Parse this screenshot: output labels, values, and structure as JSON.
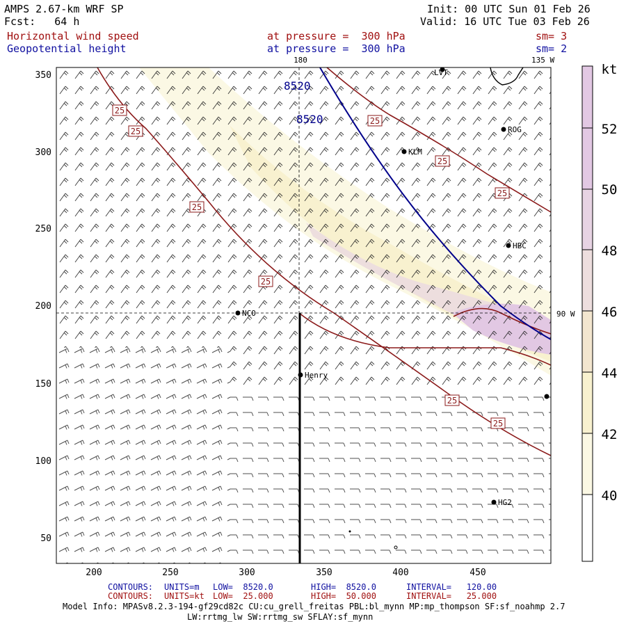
{
  "header": {
    "model": "AMPS 2.67-km WRF SP",
    "forecast": "Fcst:   64 h",
    "init": "Init: 00 UTC Sun 01 Feb 26",
    "valid": "Valid: 16 UTC Tue 03 Feb 26",
    "field1_name": "Horizontal wind speed",
    "field1_level": "at pressure =  300 hPa",
    "field1_smooth": "sm= 3",
    "field2_name": "Geopotential height",
    "field2_level": "at pressure =  300 hPa",
    "field2_smooth": "sm= 2"
  },
  "colors": {
    "wind_contour": "#8b1a1a",
    "height_contour": "#00008b",
    "shade_40": "#fbf8e4",
    "shade_42": "#f8f1cf",
    "shade_44": "#f3e6cf",
    "shade_46": "#eddede",
    "shade_48": "#e7d3e3",
    "shade_50": "#e2c8e3"
  },
  "map": {
    "x_ticks": [
      "200",
      "250",
      "300",
      "350",
      "400",
      "450"
    ],
    "y_ticks": [
      "350",
      "300",
      "250",
      "200",
      "150",
      "100",
      "50"
    ],
    "lon_labels": {
      "top_180": "180",
      "top_135w": "135 W",
      "right_90w": "90 W"
    },
    "wind_contour_label": "25",
    "height_contour_label": "8520",
    "stations": [
      {
        "name": "ROG",
        "label": "ROG"
      },
      {
        "name": "KLM",
        "label": "KLM"
      },
      {
        "name": "HBC",
        "label": "HBC"
      },
      {
        "name": "NCO",
        "label": "NCO"
      },
      {
        "name": "Henry",
        "label": "Henry"
      },
      {
        "name": "HG2",
        "label": "HG2"
      },
      {
        "name": "LVT",
        "label": "LVT"
      }
    ]
  },
  "colorbar": {
    "unit": "kt",
    "labels": [
      "52",
      "50",
      "48",
      "46",
      "44",
      "42",
      "40"
    ]
  },
  "footer": {
    "contours_label": "CONTOURS:",
    "height_units": "UNITS=m",
    "height_low": "LOW=  8520.0",
    "height_high": "HIGH=  8520.0",
    "height_interval": "INTERVAL=   120.00",
    "wind_units": "UNITS=kt",
    "wind_low": "LOW=  25.000",
    "wind_high": "HIGH=  50.000",
    "wind_interval": "INTERVAL=   25.000",
    "model_info_1": "Model Info: MPASv8.2.3-194-gf29cd82c CU:cu_grell_freitas PBL:bl_mynn MP:mp_thompson SF:sf_noahmp 2.7",
    "model_info_2": "LW:rrtmg_lw SW:rrtmg_sw SFLAY:sf_mynn"
  }
}
